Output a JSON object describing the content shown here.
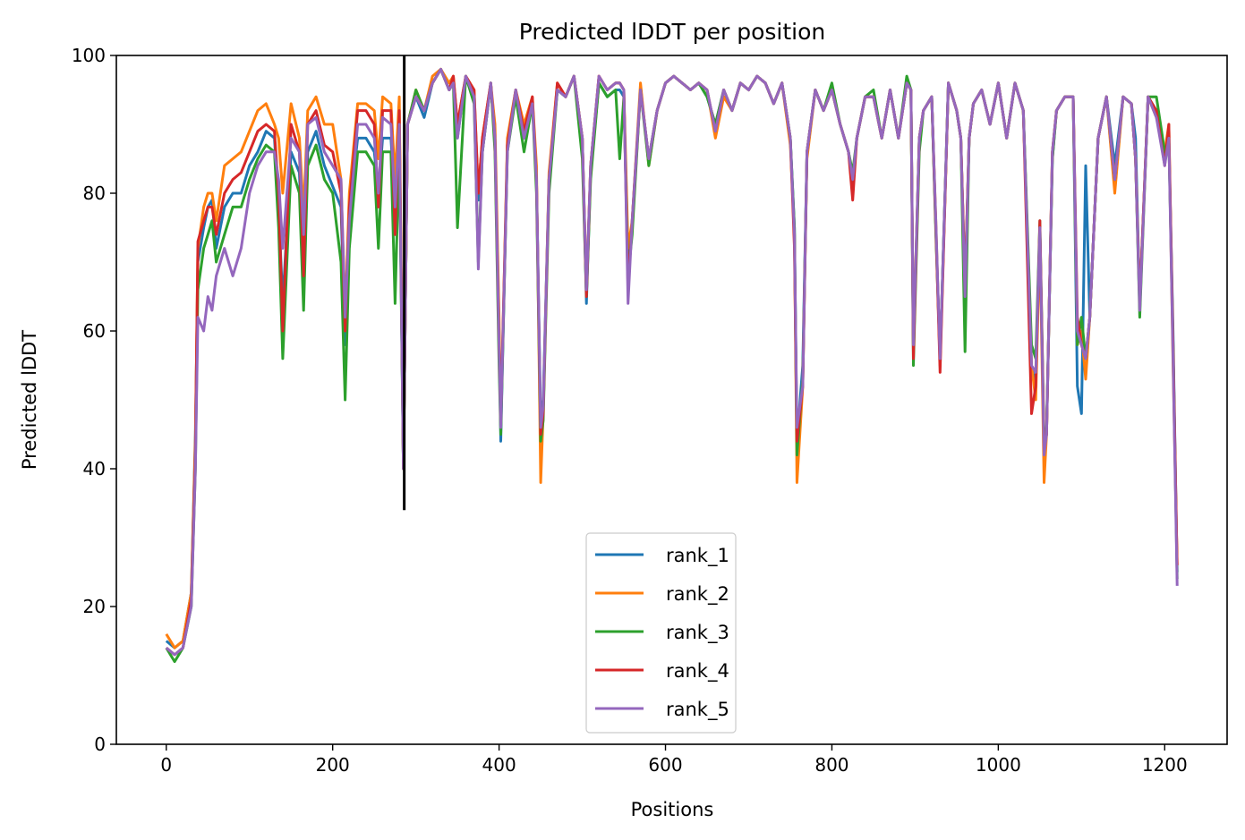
{
  "chart_data": {
    "type": "line",
    "title": "Predicted lDDT per position",
    "xlabel": "Positions",
    "ylabel": "Predicted lDDT",
    "xlim": [
      -60,
      1275
    ],
    "ylim": [
      0,
      100
    ],
    "xticks": [
      0,
      200,
      400,
      600,
      800,
      1000,
      1200
    ],
    "yticks": [
      0,
      20,
      40,
      60,
      80,
      100
    ],
    "grid": false,
    "legend_position": "lower-center",
    "vline": {
      "x": 286,
      "y_from": 34,
      "y_to": 100,
      "color": "#000000"
    },
    "x": [
      0,
      10,
      20,
      30,
      35,
      38,
      45,
      50,
      55,
      60,
      70,
      80,
      90,
      100,
      110,
      120,
      130,
      135,
      140,
      150,
      160,
      165,
      170,
      180,
      190,
      200,
      210,
      215,
      220,
      230,
      240,
      250,
      255,
      260,
      270,
      275,
      280,
      285,
      290,
      300,
      310,
      320,
      330,
      340,
      345,
      350,
      360,
      370,
      375,
      380,
      390,
      395,
      400,
      402,
      410,
      420,
      430,
      440,
      445,
      450,
      453,
      460,
      470,
      480,
      490,
      500,
      505,
      510,
      520,
      530,
      540,
      545,
      550,
      555,
      560,
      570,
      580,
      590,
      600,
      610,
      620,
      630,
      640,
      650,
      660,
      670,
      680,
      690,
      700,
      710,
      720,
      730,
      740,
      750,
      755,
      758,
      765,
      770,
      780,
      790,
      800,
      810,
      820,
      825,
      830,
      840,
      850,
      860,
      870,
      880,
      890,
      895,
      898,
      905,
      910,
      920,
      925,
      930,
      940,
      950,
      955,
      960,
      965,
      970,
      980,
      990,
      1000,
      1010,
      1020,
      1030,
      1040,
      1045,
      1050,
      1055,
      1058,
      1065,
      1070,
      1080,
      1090,
      1095,
      1100,
      1105,
      1110,
      1120,
      1130,
      1140,
      1150,
      1160,
      1165,
      1170,
      1180,
      1190,
      1200,
      1205,
      1210,
      1215
    ],
    "series": [
      {
        "name": "rank_1",
        "color": "#1f77b4",
        "values": [
          15,
          14,
          15,
          22,
          45,
          70,
          75,
          78,
          79,
          72,
          78,
          80,
          80,
          84,
          86,
          89,
          88,
          78,
          64,
          86,
          83,
          68,
          86,
          89,
          84,
          81,
          78,
          58,
          77,
          88,
          88,
          86,
          80,
          88,
          88,
          78,
          89,
          40,
          90,
          94,
          91,
          96,
          98,
          95,
          96,
          88,
          97,
          94,
          79,
          86,
          96,
          88,
          60,
          44,
          87,
          95,
          88,
          93,
          82,
          47,
          50,
          82,
          95,
          94,
          97,
          88,
          64,
          83,
          96,
          94,
          95,
          95,
          94,
          70,
          75,
          95,
          85,
          92,
          96,
          97,
          96,
          95,
          96,
          94,
          90,
          95,
          92,
          96,
          95,
          97,
          96,
          93,
          96,
          88,
          75,
          44,
          55,
          86,
          95,
          92,
          95,
          90,
          86,
          81,
          88,
          94,
          94,
          88,
          95,
          88,
          96,
          95,
          57,
          88,
          92,
          94,
          75,
          56,
          96,
          92,
          88,
          66,
          88,
          93,
          95,
          90,
          96,
          88,
          96,
          92,
          55,
          52,
          75,
          42,
          45,
          85,
          92,
          94,
          94,
          52,
          48,
          84,
          62,
          88,
          94,
          84,
          94,
          93,
          88,
          64,
          94,
          92,
          85,
          88,
          60,
          25
        ]
      },
      {
        "name": "rank_2",
        "color": "#ff7f0e",
        "values": [
          16,
          14,
          15,
          22,
          44,
          72,
          78,
          80,
          80,
          76,
          84,
          85,
          86,
          89,
          92,
          93,
          90,
          88,
          80,
          93,
          88,
          77,
          92,
          94,
          90,
          90,
          82,
          62,
          80,
          93,
          93,
          92,
          85,
          94,
          93,
          82,
          94,
          40,
          90,
          95,
          92,
          97,
          98,
          96,
          97,
          90,
          97,
          95,
          80,
          88,
          96,
          90,
          62,
          46,
          88,
          95,
          90,
          94,
          84,
          38,
          48,
          83,
          96,
          94,
          97,
          88,
          66,
          84,
          97,
          95,
          96,
          96,
          95,
          72,
          76,
          96,
          84,
          92,
          96,
          97,
          96,
          95,
          96,
          95,
          88,
          94,
          92,
          96,
          95,
          97,
          96,
          93,
          96,
          87,
          74,
          38,
          52,
          85,
          95,
          92,
          95,
          90,
          86,
          82,
          88,
          94,
          94,
          88,
          95,
          88,
          96,
          95,
          58,
          88,
          92,
          94,
          76,
          55,
          96,
          92,
          88,
          67,
          88,
          93,
          95,
          90,
          96,
          88,
          96,
          92,
          55,
          50,
          74,
          38,
          45,
          86,
          92,
          94,
          94,
          58,
          60,
          53,
          62,
          88,
          94,
          80,
          94,
          93,
          85,
          64,
          94,
          91,
          86,
          90,
          55,
          26
        ]
      },
      {
        "name": "rank_3",
        "color": "#2ca02c",
        "values": [
          14,
          12,
          14,
          20,
          40,
          66,
          72,
          74,
          76,
          70,
          74,
          78,
          78,
          82,
          85,
          87,
          86,
          75,
          56,
          84,
          80,
          63,
          84,
          87,
          82,
          80,
          70,
          50,
          72,
          86,
          86,
          84,
          72,
          86,
          86,
          64,
          87,
          40,
          90,
          95,
          92,
          96,
          98,
          95,
          96,
          75,
          97,
          93,
          70,
          86,
          96,
          86,
          55,
          45,
          86,
          94,
          86,
          93,
          80,
          44,
          47,
          80,
          95,
          94,
          97,
          85,
          65,
          82,
          96,
          94,
          95,
          85,
          94,
          68,
          74,
          95,
          84,
          92,
          96,
          97,
          96,
          95,
          96,
          94,
          90,
          95,
          92,
          96,
          95,
          97,
          96,
          93,
          96,
          88,
          75,
          42,
          53,
          86,
          95,
          92,
          96,
          90,
          86,
          83,
          88,
          94,
          95,
          88,
          95,
          88,
          97,
          95,
          55,
          86,
          92,
          94,
          74,
          56,
          96,
          92,
          88,
          57,
          88,
          93,
          95,
          90,
          96,
          88,
          96,
          92,
          58,
          56,
          76,
          44,
          46,
          85,
          92,
          94,
          94,
          58,
          62,
          56,
          62,
          88,
          94,
          82,
          94,
          93,
          85,
          62,
          94,
          94,
          86,
          88,
          58,
          24
        ]
      },
      {
        "name": "rank_4",
        "color": "#d62728",
        "values": [
          14,
          13,
          14,
          21,
          42,
          73,
          76,
          78,
          78,
          74,
          80,
          82,
          83,
          86,
          89,
          90,
          89,
          80,
          60,
          90,
          86,
          68,
          90,
          92,
          87,
          86,
          80,
          60,
          78,
          92,
          92,
          90,
          78,
          92,
          92,
          74,
          92,
          40,
          90,
          94,
          92,
          96,
          98,
          95,
          97,
          90,
          97,
          95,
          80,
          88,
          96,
          88,
          58,
          47,
          87,
          95,
          89,
          94,
          82,
          45,
          48,
          82,
          96,
          94,
          97,
          88,
          65,
          84,
          97,
          95,
          96,
          96,
          95,
          66,
          76,
          95,
          85,
          92,
          96,
          97,
          96,
          95,
          96,
          95,
          89,
          95,
          92,
          96,
          95,
          97,
          96,
          93,
          96,
          88,
          72,
          44,
          52,
          86,
          95,
          92,
          95,
          90,
          86,
          79,
          88,
          94,
          94,
          88,
          95,
          88,
          96,
          95,
          56,
          88,
          92,
          94,
          75,
          54,
          96,
          92,
          88,
          66,
          88,
          93,
          95,
          90,
          96,
          88,
          96,
          92,
          48,
          52,
          76,
          43,
          45,
          86,
          92,
          94,
          94,
          62,
          58,
          56,
          62,
          88,
          94,
          82,
          94,
          93,
          85,
          64,
          94,
          92,
          84,
          90,
          58,
          26
        ]
      },
      {
        "name": "rank_5",
        "color": "#9467bd",
        "values": [
          14,
          13,
          14,
          20,
          40,
          62,
          60,
          65,
          63,
          68,
          72,
          68,
          72,
          80,
          84,
          86,
          86,
          82,
          72,
          88,
          86,
          74,
          90,
          91,
          86,
          84,
          82,
          62,
          76,
          90,
          90,
          88,
          80,
          91,
          90,
          78,
          90,
          40,
          90,
          94,
          92,
          96,
          98,
          95,
          96,
          88,
          97,
          94,
          69,
          86,
          96,
          88,
          58,
          46,
          86,
          95,
          88,
          93,
          82,
          46,
          49,
          82,
          95,
          94,
          97,
          88,
          66,
          84,
          97,
          95,
          96,
          96,
          95,
          64,
          76,
          95,
          85,
          92,
          96,
          97,
          96,
          95,
          96,
          95,
          89,
          95,
          92,
          96,
          95,
          97,
          96,
          93,
          96,
          88,
          74,
          46,
          52,
          86,
          95,
          92,
          95,
          90,
          86,
          82,
          88,
          94,
          94,
          88,
          95,
          88,
          96,
          95,
          58,
          88,
          92,
          94,
          76,
          56,
          96,
          92,
          88,
          65,
          88,
          93,
          95,
          90,
          96,
          88,
          96,
          92,
          55,
          54,
          75,
          42,
          45,
          86,
          92,
          94,
          94,
          60,
          58,
          56,
          62,
          88,
          94,
          82,
          94,
          93,
          85,
          63,
          94,
          91,
          84,
          88,
          56,
          23
        ]
      }
    ]
  }
}
